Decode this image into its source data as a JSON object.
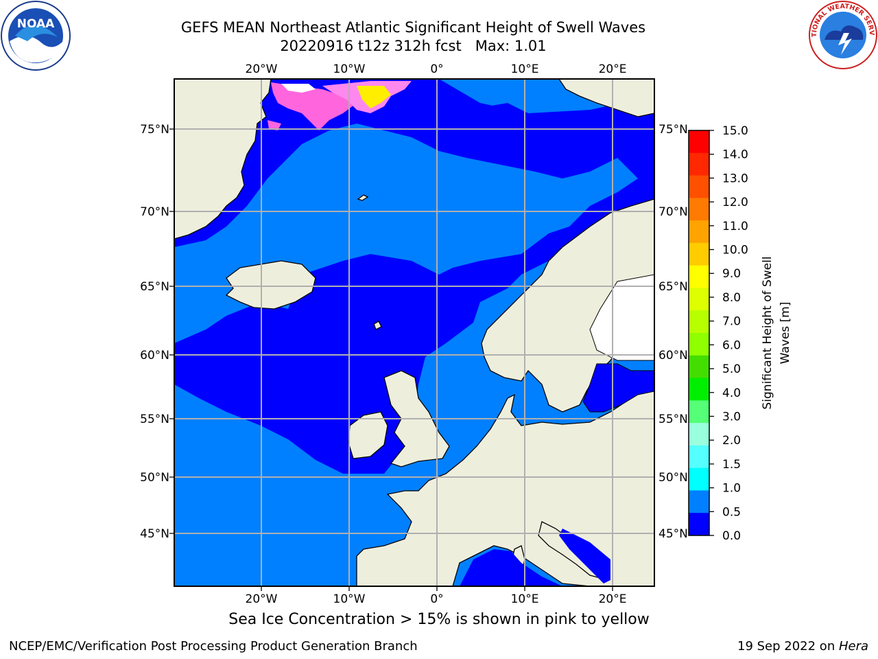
{
  "title": {
    "line1": "GEFS MEAN Northeast Atlantic Significant Height of Swell Waves",
    "line2": "20220916 t12z 312h fcst   Max: 1.01"
  },
  "map": {
    "top_lon_labels": [
      "20°W",
      "10°W",
      "0°",
      "10°E",
      "20°E"
    ],
    "bottom_lon_labels": [
      "20°W",
      "10°W",
      "0°",
      "10°E",
      "20°E"
    ],
    "left_lat_labels": [
      "75°N",
      "70°N",
      "65°N",
      "60°N",
      "55°N",
      "50°N",
      "45°N"
    ],
    "right_lat_labels": [
      "75°N",
      "70°N",
      "65°N",
      "60°N",
      "55°N",
      "50°N",
      "45°N"
    ],
    "colors": {
      "ocean_dark": "#0000ff",
      "ocean_light": "#0080ff",
      "land": "#eeeedd",
      "grid": "#b0b0b0",
      "ice_pink": "#ff66dd",
      "ice_yellow": "#ffee00"
    }
  },
  "colorbar": {
    "label_line1": "Significant Height of Swell",
    "label_line2": "Waves [m]",
    "ticks": [
      "15.0",
      "14.0",
      "13.0",
      "12.0",
      "11.0",
      "10.0",
      "9.0",
      "8.0",
      "7.0",
      "6.0",
      "5.0",
      "4.0",
      "3.0",
      "2.0",
      "1.5",
      "1.0",
      "0.5",
      "0.0"
    ],
    "colors_top_to_bottom": [
      "#ff0000",
      "#ff2800",
      "#ff5000",
      "#ff7a00",
      "#ffa300",
      "#ffcc00",
      "#ffff00",
      "#ddff00",
      "#b8ff00",
      "#90ff00",
      "#44dd00",
      "#00ee00",
      "#55ff77",
      "#99ffdd",
      "#55ffff",
      "#00ffff",
      "#0080ff",
      "#0000ff"
    ]
  },
  "caption": "Sea Ice Concentration > 15% is shown in pink to yellow",
  "footer": {
    "left": "NCEP/EMC/Verification Post Processing Product Generation Branch",
    "right_prefix": "19 Sep 2022 on ",
    "right_italic": "Hera"
  },
  "logos": {
    "noaa_text": "NOAA",
    "nws_text": "NATIONAL WEATHER SERVICE"
  }
}
